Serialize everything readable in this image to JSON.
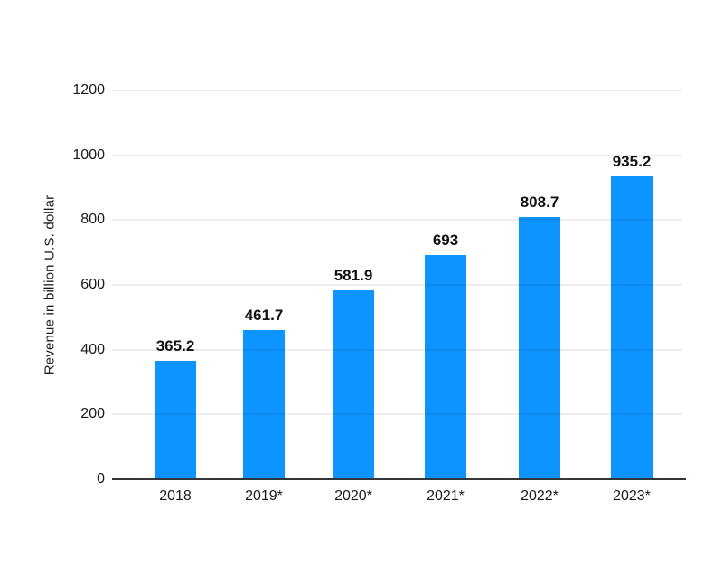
{
  "page": {
    "background_color": "#ffffff"
  },
  "chart_data": {
    "type": "bar",
    "title": "",
    "xlabel": "",
    "ylabel": "Revenue in billion U.S. dollar",
    "categories": [
      "2018",
      "2019*",
      "2020*",
      "2021*",
      "2022*",
      "2023*"
    ],
    "values": [
      365.2,
      461.7,
      581.9,
      693,
      808.7,
      935.2
    ],
    "value_labels": [
      "365.2",
      "461.7",
      "581.9",
      "693",
      "808.7",
      "935.2"
    ],
    "ylim": [
      0,
      1200
    ],
    "yticks": [
      0,
      200,
      400,
      600,
      800,
      1000,
      1200
    ],
    "grid": "horizontal-only",
    "legend": "none",
    "bar_color": "#0d94ff",
    "gridline_color": "rgba(0,0,0,0.075)",
    "axis_line_color": "#32353a",
    "text_color": "#1a1a1a",
    "value_label_color": "#111111"
  }
}
